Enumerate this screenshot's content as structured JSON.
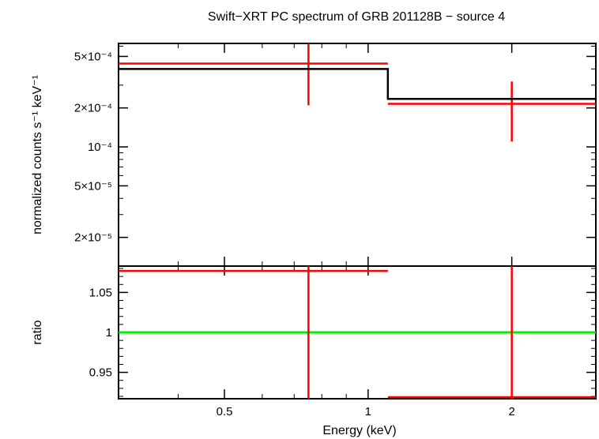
{
  "chart_data": [
    {
      "type": "scatter",
      "panel": "spectrum",
      "title": "Swift−XRT PC spectrum of GRB 201128B − source 4",
      "ylabel": "normalized counts s⁻¹ keV⁻¹",
      "xlabel": "",
      "x_scale": "log",
      "y_scale": "log",
      "xlim": [
        0.3,
        3.0
      ],
      "ylim": [
        1.2e-05,
        0.00063
      ],
      "y_ticks": [
        {
          "value": 0.0005,
          "label": "5×10⁻⁴"
        },
        {
          "value": 0.0002,
          "label": "2×10⁻⁴"
        },
        {
          "value": 0.0001,
          "label": "10⁻⁴"
        },
        {
          "value": 5e-05,
          "label": "5×10⁻⁵"
        },
        {
          "value": 2e-05,
          "label": "2×10⁻⁵"
        }
      ],
      "series": [
        {
          "color": "#ff0000",
          "style": "errorbar",
          "points": [
            {
              "x": 0.75,
              "xlo": 0.3,
              "xhi": 1.1,
              "y": 0.00044,
              "ylo": 0.00021,
              "yhi": 0.00063
            },
            {
              "x": 2.0,
              "xlo": 1.1,
              "xhi": 3.0,
              "y": 0.000215,
              "ylo": 0.00011,
              "yhi": 0.00032
            }
          ]
        },
        {
          "color": "#000000",
          "style": "step",
          "steps": [
            {
              "xlo": 0.3,
              "xhi": 1.1,
              "y": 0.0004
            },
            {
              "xlo": 1.1,
              "xhi": 3.0,
              "y": 0.000235
            }
          ]
        }
      ]
    },
    {
      "type": "scatter",
      "panel": "ratio",
      "title": "",
      "xlabel": "Energy (keV)",
      "ylabel": "ratio",
      "x_scale": "log",
      "y_scale": "linear",
      "xlim": [
        0.3,
        3.0
      ],
      "ylim": [
        0.917,
        1.083
      ],
      "x_ticks": [
        {
          "value": 0.5,
          "label": "0.5"
        },
        {
          "value": 1,
          "label": "1"
        },
        {
          "value": 2,
          "label": "2"
        }
      ],
      "y_ticks": [
        {
          "value": 1.05,
          "label": "1.05"
        },
        {
          "value": 1.0,
          "label": "1"
        },
        {
          "value": 0.95,
          "label": "0.95"
        }
      ],
      "reference_line": {
        "y": 1.0,
        "color": "#00ee00"
      },
      "series": [
        {
          "color": "#ff0000",
          "style": "errorbar",
          "points": [
            {
              "x": 0.75,
              "xlo": 0.3,
              "xhi": 1.1,
              "y": 1.077,
              "ylo": 0.9,
              "yhi": 1.1
            },
            {
              "x": 2.0,
              "xlo": 1.1,
              "xhi": 3.0,
              "y": 0.919,
              "ylo": 0.9,
              "yhi": 1.1
            }
          ]
        }
      ]
    }
  ]
}
